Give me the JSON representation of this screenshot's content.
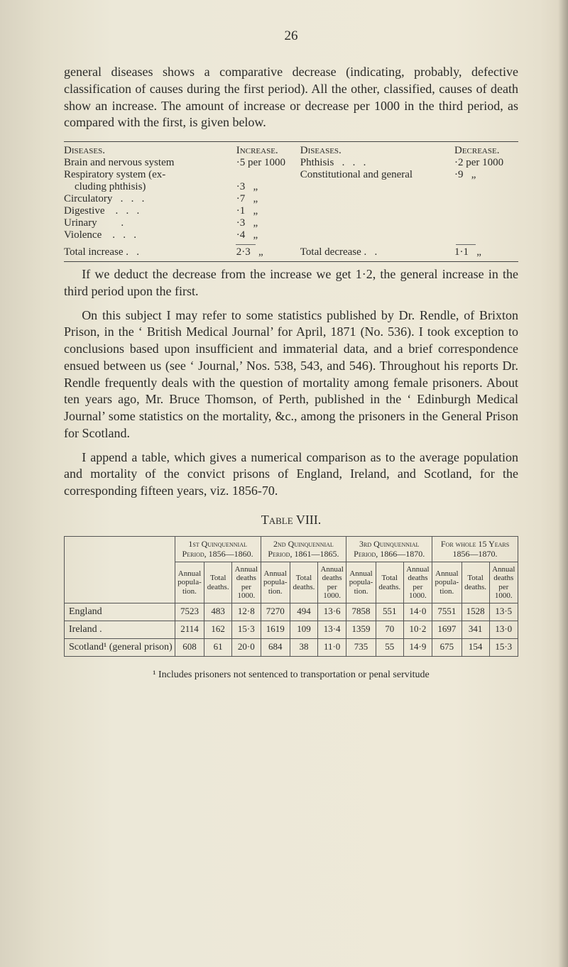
{
  "page_number": "26",
  "paragraphs": {
    "p1": "general diseases shows a comparative decrease (indicating, probably, defective classification of causes during the first period). All the other, classified, causes of death show an increase. The amount of increase or decrease per 1000 in the third period, as compared with the first, is given below.",
    "p2": "If we deduct the decrease from the increase we get 1·2, the general increase in the third period upon the first.",
    "p3": "On this subject I may refer to some statistics published by Dr. Rendle, of Brixton Prison, in the ‘ British Medical Journal’ for April, 1871 (No. 536). I took exception to conclusions based upon insufficient and immaterial data, and a brief correspondence ensued between us (see ‘ Journal,’ Nos. 538, 543, and 546). Throughout his reports Dr. Rendle frequently deals with the question of mortality among female prisoners. About ten years ago, Mr. Bruce Thomson, of Perth, published in the ‘ Edinburgh Medical Journal’ some statistics on the mortality, &c., among the prisoners in the General Prison for Scotland.",
    "p4": "I append a table, which gives a numerical comparison as to the average population and mortality of the convict prisons of England, Ireland, and Scotland, for the corresponding fifteen years, viz. 1856-70."
  },
  "small_table": {
    "left_head_a": "Diseases.",
    "left_head_b": "Increase.",
    "right_head_a": "Diseases.",
    "right_head_b": "Decrease.",
    "left_rows": [
      {
        "label": "Brain and nervous system",
        "value": "·5 per 1000"
      },
      {
        "label": "Respiratory system (ex-",
        "value": ""
      },
      {
        "label": "    cluding phthisis)",
        "value": "·3   „"
      },
      {
        "label": "Circulatory   .   .   .",
        "value": "·7   „"
      },
      {
        "label": "Digestive    .   .   .",
        "value": "·1   „"
      },
      {
        "label": "Urinary         .",
        "value": "·3   „"
      },
      {
        "label": "Violence    .   .   .",
        "value": "·4   „"
      }
    ],
    "right_rows": [
      {
        "label": "Phthisis   .   .   .",
        "value": "·2 per 1000"
      },
      {
        "label": "Constitutional and general",
        "value": "·9   „"
      }
    ],
    "left_total": {
      "label": "Total increase .   .",
      "value": "2·3   „"
    },
    "right_total": {
      "label": "Total decrease .   .",
      "value": "1·1   „"
    }
  },
  "table_caption": "Table VIII.",
  "big_table": {
    "group_headers": [
      "1st Quinquennial Period, 1856—1860.",
      "2nd Quinquennial Period, 1861—1865.",
      "3rd Quinquennial Period, 1866—1870.",
      "For whole 15 Years 1856—1870."
    ],
    "sub_headers": [
      "Annual popula-tion.",
      "Total deaths.",
      "Annual deaths per 1000.",
      "Annual popula-tion.",
      "Total deaths.",
      "Annual deaths per 1000.",
      "Annual popula-tion.",
      "Total deaths.",
      "Annual deaths per 1000.",
      "Annual popula-tion.",
      "Total deaths.",
      "Annual deaths per 1000."
    ],
    "rows": [
      {
        "label": "England",
        "cells": [
          "7523",
          "483",
          "12·8",
          "7270",
          "494",
          "13·6",
          "7858",
          "551",
          "14·0",
          "7551",
          "1528",
          "13·5"
        ]
      },
      {
        "label": "Ireland .",
        "cells": [
          "2114",
          "162",
          "15·3",
          "1619",
          "109",
          "13·4",
          "1359",
          "70",
          "10·2",
          "1697",
          "341",
          "13·0"
        ]
      },
      {
        "label": "Scotland¹ (general prison)",
        "cells": [
          "608",
          "61",
          "20·0",
          "684",
          "38",
          "11·0",
          "735",
          "55",
          "14·9",
          "675",
          "154",
          "15·3"
        ]
      }
    ]
  },
  "footnote": "¹ Includes prisoners not sentenced to transportation or penal servitude"
}
